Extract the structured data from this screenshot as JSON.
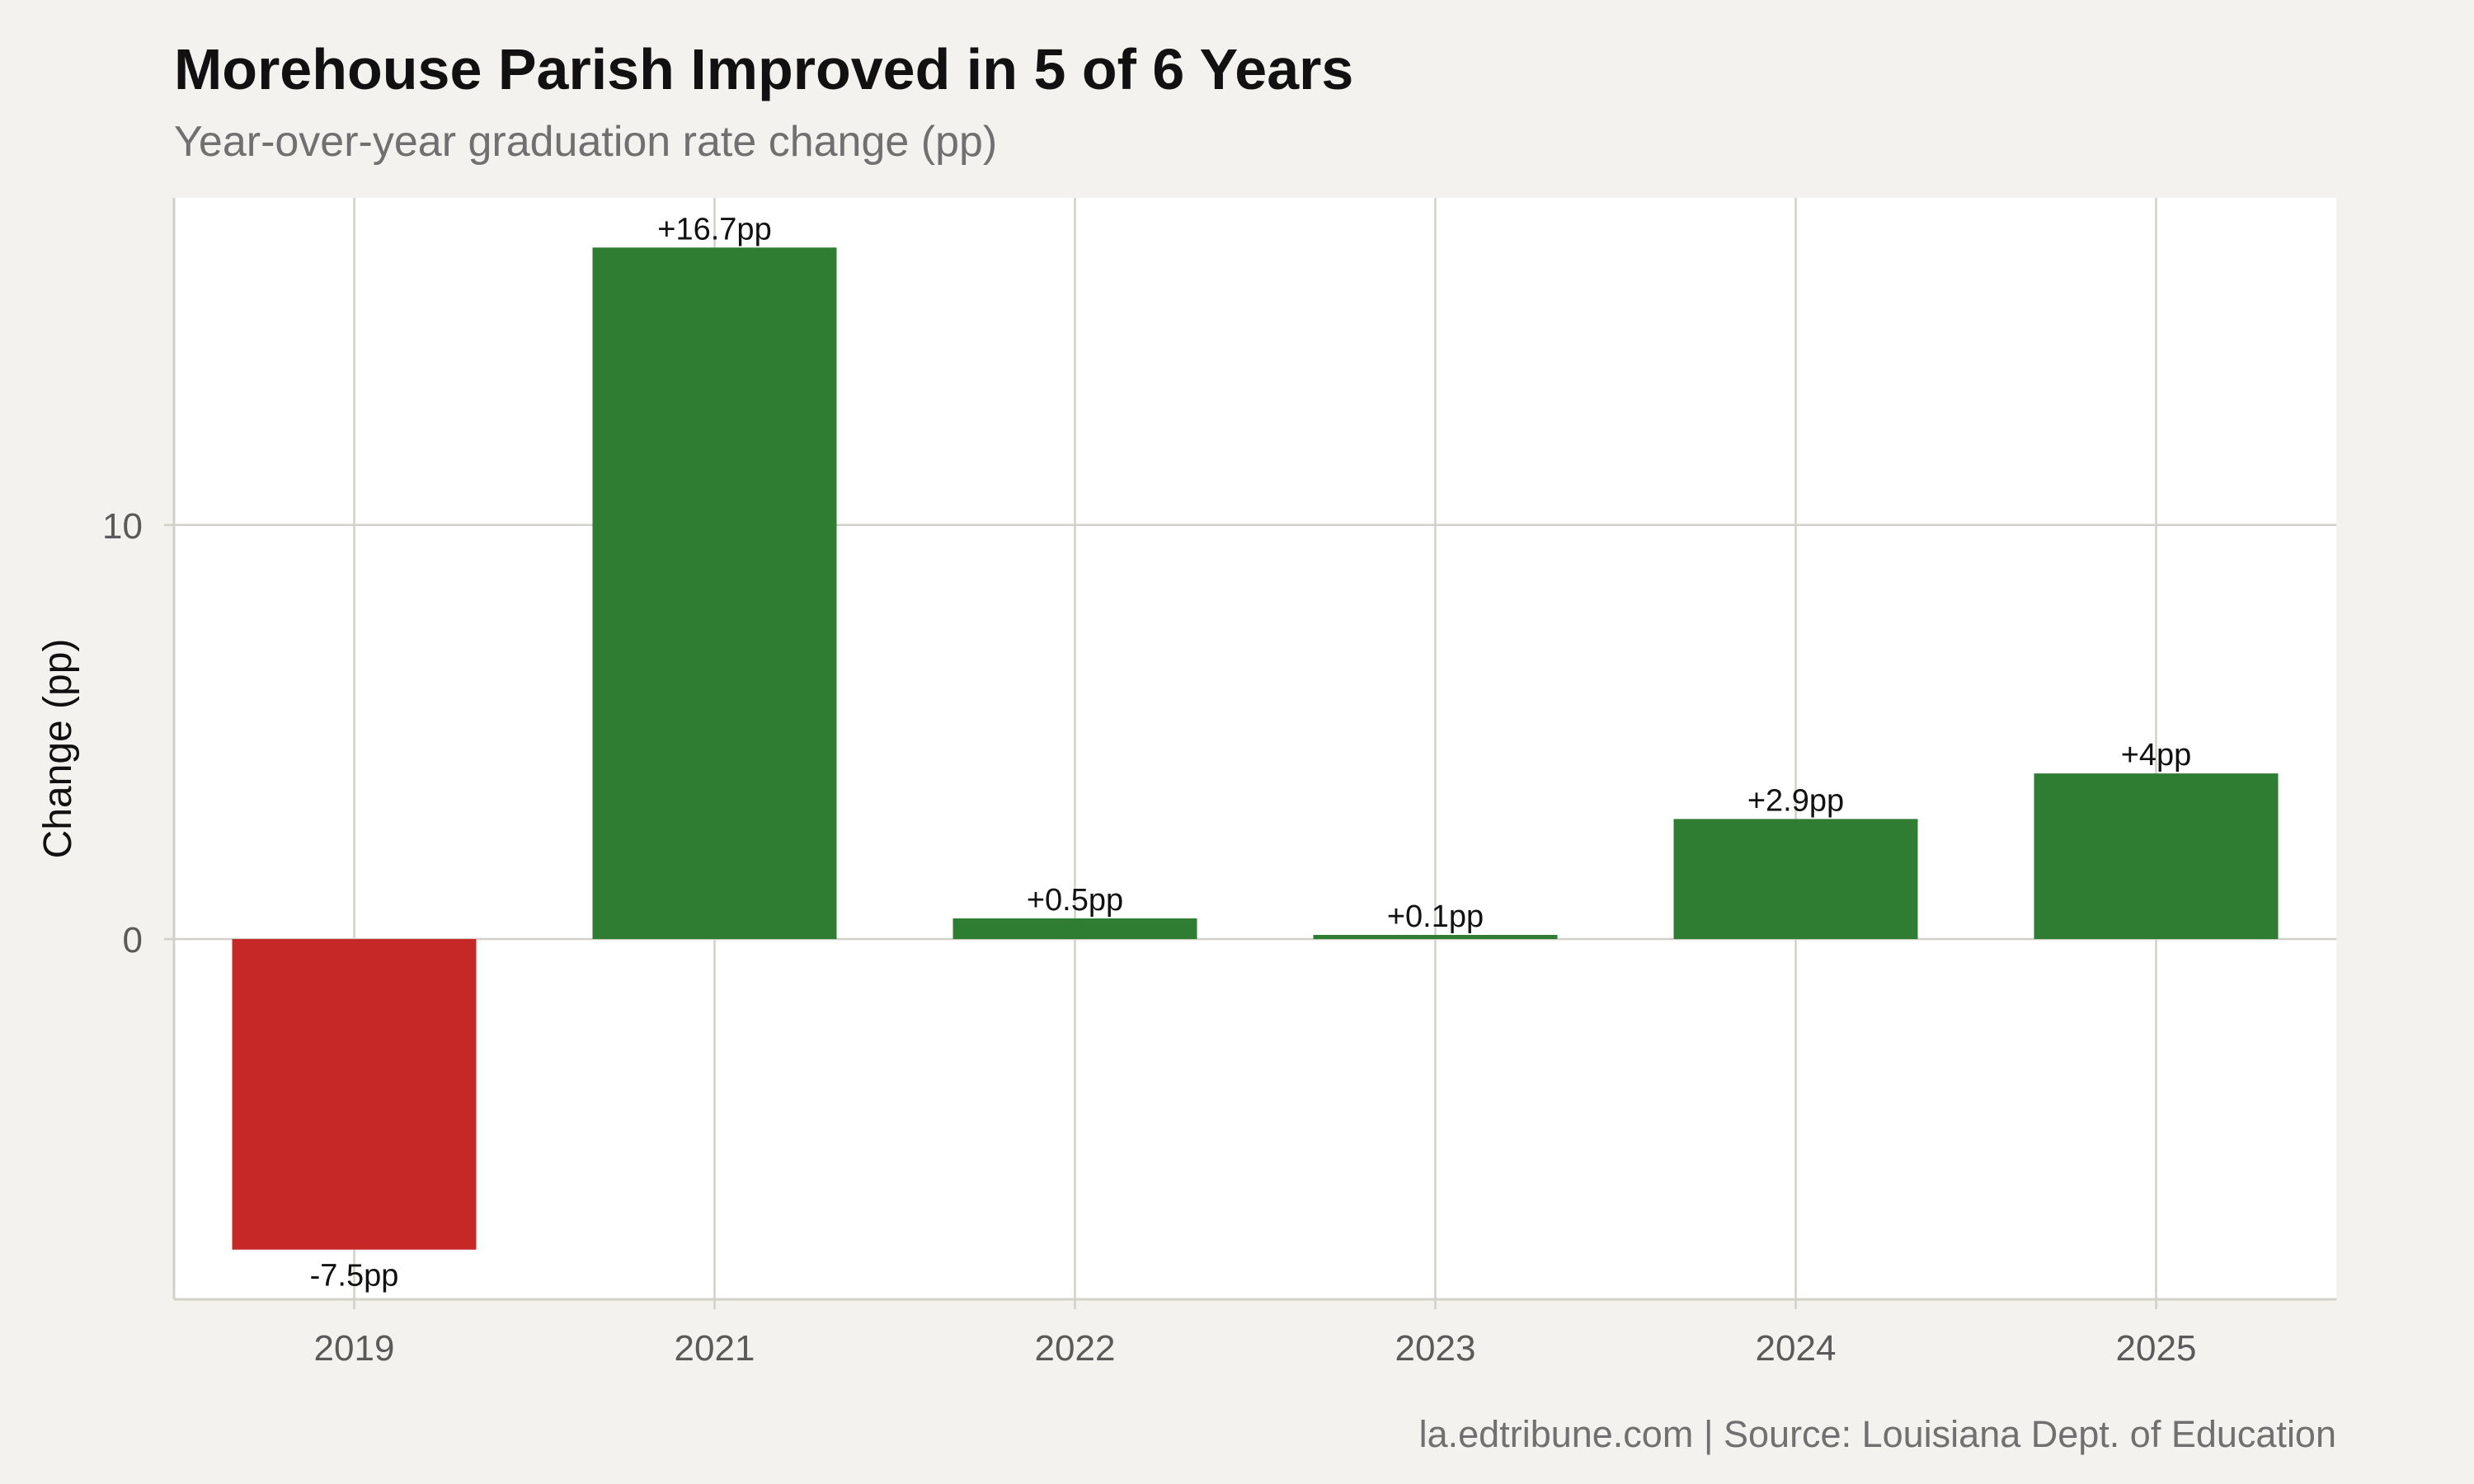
{
  "title": "Morehouse Parish Improved in 5 of 6 Years",
  "subtitle": "Year-over-year graduation rate change (pp)",
  "caption": "la.edtribune.com | Source: Louisiana Dept. of Education",
  "colors": {
    "background": "#f4f2ee",
    "panel": "#ffffff",
    "grid": "#d2d0c8",
    "positive": "#2e7d32",
    "negative": "#c62828"
  },
  "chart_data": {
    "type": "bar",
    "title": "Morehouse Parish Improved in 5 of 6 Years",
    "subtitle": "Year-over-year graduation rate change (pp)",
    "xlabel": "",
    "ylabel": "Change (pp)",
    "categories": [
      "2019",
      "2021",
      "2022",
      "2023",
      "2024",
      "2025"
    ],
    "values": [
      -7.5,
      16.7,
      0.5,
      0.1,
      2.9,
      4
    ],
    "data_labels": [
      "-7.5pp",
      "+16.7pp",
      "+0.5pp",
      "+0.1pp",
      "+2.9pp",
      "+4pp"
    ],
    "yticks": [
      0,
      10
    ],
    "ylim": [
      -8.7,
      17.9
    ],
    "grid": true,
    "legend": "none"
  }
}
